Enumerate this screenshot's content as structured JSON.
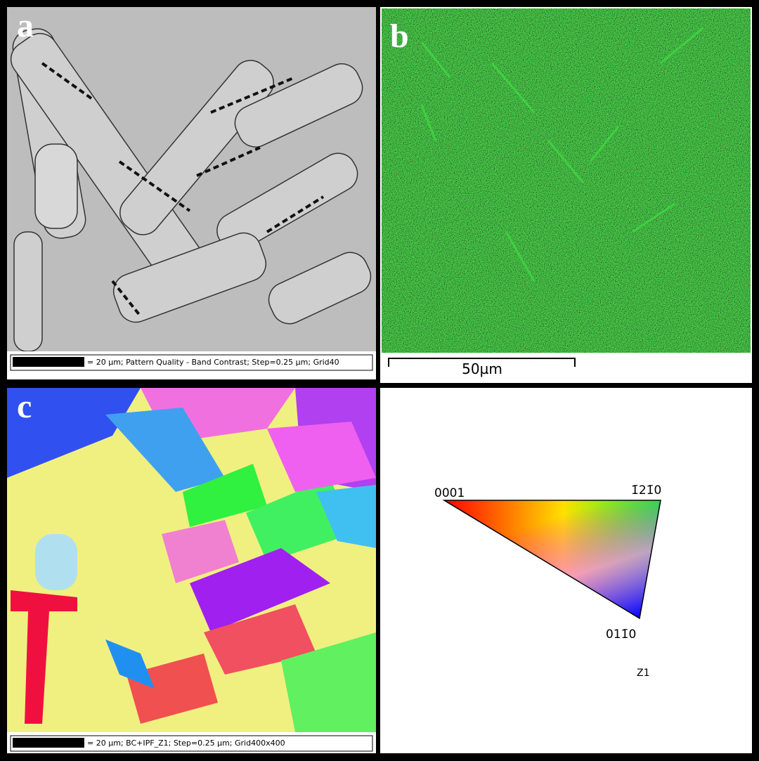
{
  "panels": {
    "a": {
      "label": "a",
      "caption": "= 20 µm; Pattern Quality - Band Contrast; Step=0.25 µm; Grid40"
    },
    "b": {
      "label": "b",
      "scale": "50µm"
    },
    "c": {
      "label": "c",
      "caption": "= 20 µm; BC+IPF_Z1; Step=0.25 µm; Grid400x400"
    },
    "legend": {
      "corners": [
        "0001",
        "1̄21̄0",
        "011̄0"
      ],
      "axis": "Z1"
    }
  }
}
